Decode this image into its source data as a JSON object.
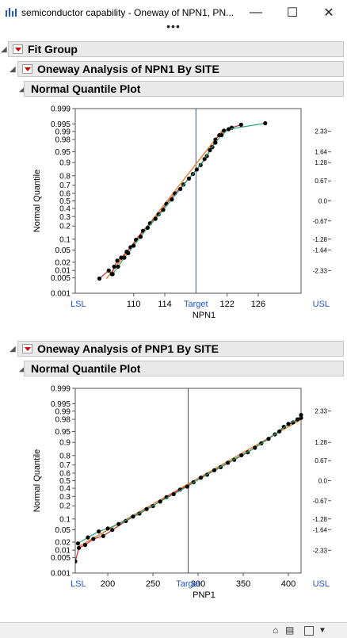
{
  "window": {
    "title": "semiconductor capability - Oneway of NPN1, PN...",
    "more": "•••",
    "minimize": "—",
    "maximize": "☐",
    "close": "✕"
  },
  "report": {
    "fit_group": "Fit Group",
    "sections": [
      {
        "heading": "Oneway Analysis of NPN1 By SITE",
        "subheading": "Normal Quantile Plot"
      },
      {
        "heading": "Oneway Analysis of PNP1 By SITE",
        "subheading": "Normal Quantile Plot"
      }
    ]
  },
  "colors": {
    "spec": "#2255cc",
    "points": "#000000",
    "series_orange": "#e0883a",
    "series_teal": "#2aa57c",
    "series_red": "#c0303a"
  },
  "chart_data": [
    {
      "type": "scatter",
      "xlabel": "NPN1",
      "ylabel": "Normal Quantile",
      "xlim": [
        102.5,
        131.5
      ],
      "x_ticks": [
        "110",
        "114",
        "122",
        "126"
      ],
      "x_tick_values": [
        110,
        114,
        122,
        126
      ],
      "spec_limits": [
        {
          "label": "LSL",
          "x": 102.5
        },
        {
          "label": "Target",
          "x": 118
        },
        {
          "label": "USL",
          "x": 131.5
        }
      ],
      "prob_ticks": [
        "0.999",
        "0.995",
        "0.99",
        "0.98",
        "0.95",
        "0.9",
        "0.8",
        "0.7",
        "0.6",
        "0.5",
        "0.4",
        "0.3",
        "0.2",
        "0.1",
        "0.05",
        "0.02",
        "0.01",
        "0.005",
        "0.001"
      ],
      "prob_values": [
        0.999,
        0.995,
        0.99,
        0.98,
        0.95,
        0.9,
        0.8,
        0.7,
        0.6,
        0.5,
        0.4,
        0.3,
        0.2,
        0.1,
        0.05,
        0.02,
        0.01,
        0.005,
        0.001
      ],
      "z_ticks": [
        "2.33",
        "1.64",
        "1.28",
        "0.67",
        "0.0",
        "-0.67",
        "-1.28",
        "-1.64",
        "-2.33"
      ],
      "z_values": [
        2.33,
        1.64,
        1.28,
        0.67,
        0,
        -0.67,
        -1.28,
        -1.64,
        -2.33
      ],
      "fit": {
        "x0": 106.5,
        "z0": -2.6,
        "x1": 121.5,
        "z1": 2.4
      },
      "series": [
        {
          "values": [
            [
              105.6,
              -2.6
            ],
            [
              106.8,
              -2.33
            ],
            [
              107.2,
              -2.45
            ],
            [
              107.5,
              -2.2
            ],
            [
              107.9,
              -2.0
            ],
            [
              108.4,
              -1.9
            ],
            [
              109.1,
              -1.7
            ],
            [
              109.6,
              -1.55
            ],
            [
              110.3,
              -1.3
            ],
            [
              111.2,
              -1.0
            ],
            [
              112.1,
              -0.75
            ],
            [
              113.2,
              -0.45
            ],
            [
              114.2,
              -0.1
            ],
            [
              115.3,
              0.25
            ],
            [
              116.4,
              0.55
            ],
            [
              117.6,
              0.9
            ],
            [
              118.6,
              1.2
            ],
            [
              119.4,
              1.5
            ],
            [
              120.1,
              1.8
            ],
            [
              120.5,
              2.05
            ],
            [
              121.0,
              2.2
            ],
            [
              121.6,
              2.35
            ],
            [
              122.6,
              2.45
            ],
            [
              123.8,
              2.55
            ]
          ]
        },
        {
          "values": [
            [
              107.3,
              -2.45
            ],
            [
              108.0,
              -2.2
            ],
            [
              108.8,
              -1.9
            ],
            [
              109.3,
              -1.75
            ],
            [
              110.0,
              -1.5
            ],
            [
              110.9,
              -1.2
            ],
            [
              111.8,
              -0.9
            ],
            [
              112.8,
              -0.6
            ],
            [
              113.8,
              -0.3
            ],
            [
              114.9,
              0.05
            ],
            [
              116.0,
              0.4
            ],
            [
              117.1,
              0.75
            ],
            [
              118.1,
              1.05
            ],
            [
              119.1,
              1.4
            ],
            [
              119.8,
              1.7
            ],
            [
              120.5,
              1.95
            ],
            [
              121.3,
              2.2
            ],
            [
              122.2,
              2.4
            ],
            [
              126.9,
              2.6
            ]
          ]
        }
      ]
    },
    {
      "type": "scatter",
      "xlabel": "PNP1",
      "ylabel": "Normal Quantile",
      "xlim": [
        164,
        414
      ],
      "x_ticks": [
        "200",
        "250",
        "300",
        "350",
        "400"
      ],
      "x_tick_values": [
        200,
        250,
        300,
        350,
        400
      ],
      "spec_limits": [
        {
          "label": "LSL",
          "x": 164
        },
        {
          "label": "Target",
          "x": 289
        },
        {
          "label": "USL",
          "x": 414
        }
      ],
      "prob_ticks": [
        "0.999",
        "0.995",
        "0.99",
        "0.98",
        "0.95",
        "0.9",
        "0.8",
        "0.7",
        "0.6",
        "0.5",
        "0.4",
        "0.3",
        "0.2",
        "0.1",
        "0.05",
        "0.02",
        "0.01",
        "0.005",
        "0.001"
      ],
      "prob_values": [
        0.999,
        0.995,
        0.99,
        0.98,
        0.95,
        0.9,
        0.8,
        0.7,
        0.6,
        0.5,
        0.4,
        0.3,
        0.2,
        0.1,
        0.05,
        0.02,
        0.01,
        0.005,
        0.001
      ],
      "z_ticks": [
        "2.33",
        "1.28",
        "0.67",
        "0.0",
        "-0.67",
        "-1.28",
        "-1.64",
        "-2.33"
      ],
      "z_values": [
        2.33,
        1.28,
        0.67,
        0,
        -0.67,
        -1.28,
        -1.64,
        -2.33
      ],
      "fit": {
        "x0": 168,
        "z0": -2.2,
        "x1": 414,
        "z1": 2.05
      },
      "series": [
        {
          "values": [
            [
              164,
              -2.7
            ],
            [
              168,
              -2.25
            ],
            [
              175,
              -2.15
            ],
            [
              184,
              -1.95
            ],
            [
              195,
              -1.85
            ],
            [
              205,
              -1.65
            ],
            [
              220,
              -1.35
            ],
            [
              235,
              -1.1
            ],
            [
              250,
              -0.85
            ],
            [
              265,
              -0.55
            ],
            [
              280,
              -0.3
            ],
            [
              295,
              -0.05
            ],
            [
              310,
              0.2
            ],
            [
              325,
              0.45
            ],
            [
              340,
              0.7
            ],
            [
              355,
              0.95
            ],
            [
              370,
              1.25
            ],
            [
              385,
              1.55
            ],
            [
              395,
              1.8
            ],
            [
              405,
              1.95
            ],
            [
              414,
              2.1
            ]
          ]
        },
        {
          "values": [
            [
              167,
              -2.1
            ],
            [
              178,
              -1.9
            ],
            [
              190,
              -1.7
            ],
            [
              200,
              -1.6
            ],
            [
              212,
              -1.45
            ],
            [
              228,
              -1.2
            ],
            [
              243,
              -0.95
            ],
            [
              258,
              -0.7
            ],
            [
              273,
              -0.45
            ],
            [
              288,
              -0.2
            ],
            [
              303,
              0.1
            ],
            [
              318,
              0.35
            ],
            [
              333,
              0.6
            ],
            [
              348,
              0.85
            ],
            [
              363,
              1.1
            ],
            [
              378,
              1.4
            ],
            [
              390,
              1.65
            ],
            [
              400,
              1.9
            ],
            [
              410,
              2.05
            ],
            [
              414,
              2.2
            ]
          ]
        }
      ]
    }
  ],
  "status": {
    "home_icon": "home-icon",
    "dropdown": "▼"
  }
}
